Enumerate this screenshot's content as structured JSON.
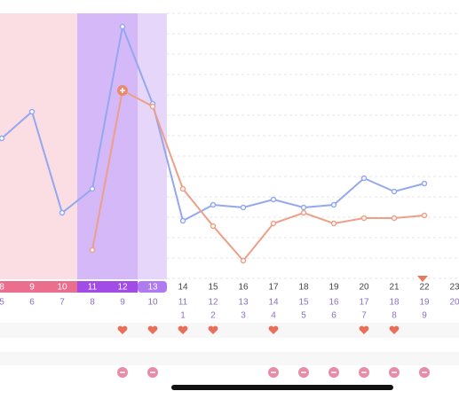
{
  "chart_data": {
    "type": "line",
    "categories": [
      8,
      9,
      10,
      11,
      12,
      13,
      14,
      15,
      16,
      17,
      18,
      19,
      20,
      21,
      22,
      23
    ],
    "cycle_days": [
      5,
      6,
      7,
      8,
      9,
      10,
      11,
      12,
      13,
      14,
      15,
      16,
      17,
      18,
      19,
      20
    ],
    "phase_days": [
      null,
      null,
      null,
      null,
      null,
      null,
      1,
      2,
      3,
      4,
      5,
      6,
      7,
      8,
      9,
      null
    ],
    "ylim": [
      0,
      100
    ],
    "series": [
      {
        "color": "#93a8ee",
        "values": [
          53,
          63,
          25,
          34,
          95,
          66,
          22,
          28,
          27,
          30,
          27,
          28,
          38,
          33,
          36,
          null
        ]
      },
      {
        "color": "#ee9f88",
        "values": [
          null,
          null,
          null,
          11,
          71,
          65,
          34,
          20,
          7,
          21,
          25,
          21,
          23,
          23,
          24,
          null
        ]
      }
    ],
    "hearts": [
      false,
      false,
      false,
      false,
      true,
      true,
      true,
      true,
      false,
      true,
      false,
      false,
      true,
      true,
      false,
      false
    ],
    "minus_marks": [
      false,
      false,
      false,
      false,
      true,
      true,
      false,
      false,
      false,
      true,
      true,
      true,
      true,
      true,
      true,
      false
    ]
  }
}
